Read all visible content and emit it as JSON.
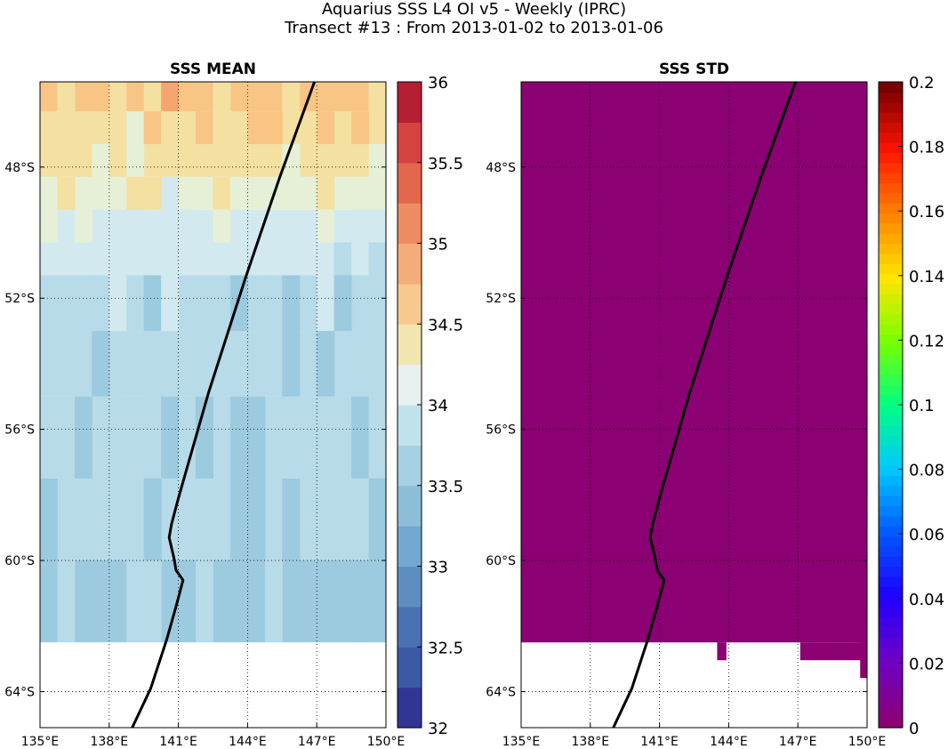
{
  "header": {
    "title": "Aquarius SSS L4 OI v5 - Weekly (IPRC)",
    "subtitle": "Transect #13 : From 2013-01-02 to 2013-01-06"
  },
  "chart_data": [
    {
      "type": "heatmap",
      "title": "SSS MEAN",
      "x_ticks": [
        "135°E",
        "138°E",
        "141°E",
        "144°E",
        "147°E",
        "150°E"
      ],
      "x_tick_values": [
        135,
        138,
        141,
        144,
        147,
        150
      ],
      "y_ticks": [
        "48°S",
        "52°S",
        "56°S",
        "60°S",
        "64°S"
      ],
      "y_tick_values": [
        -48,
        -52,
        -56,
        -60,
        -64
      ],
      "xlim": [
        135,
        150
      ],
      "ylim": [
        -65.1,
        -45.4
      ],
      "colorbar": {
        "ticks": [
          "32",
          "32.5",
          "33",
          "33.5",
          "34",
          "34.5",
          "35",
          "35.5",
          "36"
        ],
        "range": [
          32,
          36
        ],
        "colormap": "RdYlBu_r"
      },
      "grid": true,
      "row_mean_values": [
        {
          "lat_from": -45.4,
          "lat_to": -46.3,
          "value": 34.85
        },
        {
          "lat_from": -46.3,
          "lat_to": -47.3,
          "value": 34.65
        },
        {
          "lat_from": -47.3,
          "lat_to": -48.3,
          "value": 34.55
        },
        {
          "lat_from": -48.3,
          "lat_to": -49.3,
          "value": 34.4
        },
        {
          "lat_from": -49.3,
          "lat_to": -50.3,
          "value": 34.2
        },
        {
          "lat_from": -50.3,
          "lat_to": -51.3,
          "value": 34.05
        },
        {
          "lat_from": -51.3,
          "lat_to": -53.0,
          "value": 33.9
        },
        {
          "lat_from": -53.0,
          "lat_to": -55.0,
          "value": 33.8
        },
        {
          "lat_from": -55.0,
          "lat_to": -57.5,
          "value": 33.8
        },
        {
          "lat_from": -57.5,
          "lat_to": -60.0,
          "value": 33.75
        },
        {
          "lat_from": -60.0,
          "lat_to": -62.5,
          "value": 33.7
        },
        {
          "lat_from": -62.5,
          "lat_to": -65.1,
          "value": null
        }
      ],
      "transect": {
        "lon": [
          146.9,
          145.4,
          143.9,
          142.3,
          141.0,
          140.7,
          140.6,
          140.8,
          140.9,
          141.2,
          140.9,
          140.5,
          139.8,
          139.0
        ],
        "lat": [
          -45.4,
          -48.3,
          -51.4,
          -54.9,
          -58.1,
          -58.9,
          -59.3,
          -59.9,
          -60.3,
          -60.6,
          -61.4,
          -62.4,
          -63.9,
          -65.1
        ]
      }
    },
    {
      "type": "heatmap",
      "title": "SSS STD",
      "x_ticks": [
        "135°E",
        "138°E",
        "141°E",
        "144°E",
        "147°E",
        "150°E"
      ],
      "x_tick_values": [
        135,
        138,
        141,
        144,
        147,
        150
      ],
      "y_ticks": [
        "48°S",
        "52°S",
        "56°S",
        "60°S",
        "64°S"
      ],
      "y_tick_values": [
        -48,
        -52,
        -56,
        -60,
        -64
      ],
      "xlim": [
        135,
        150
      ],
      "ylim": [
        -65.1,
        -45.4
      ],
      "colorbar": {
        "ticks": [
          "0",
          "0.02",
          "0.04",
          "0.06",
          "0.08",
          "0.1",
          "0.12",
          "0.14",
          "0.16",
          "0.18",
          "0.2"
        ],
        "range": [
          0,
          0.2
        ],
        "colormap": "jet-like (purple to dark red)"
      },
      "grid": true,
      "field_value": 0,
      "field_color": "#8b0073",
      "transect": {
        "lon": [
          146.9,
          145.4,
          143.9,
          142.3,
          141.0,
          140.7,
          140.6,
          140.8,
          140.9,
          141.2,
          140.9,
          140.5,
          139.8,
          139.0
        ],
        "lat": [
          -45.4,
          -48.3,
          -51.4,
          -54.9,
          -58.1,
          -58.9,
          -59.3,
          -59.9,
          -60.3,
          -60.6,
          -61.4,
          -62.4,
          -63.9,
          -65.1
        ]
      }
    }
  ]
}
